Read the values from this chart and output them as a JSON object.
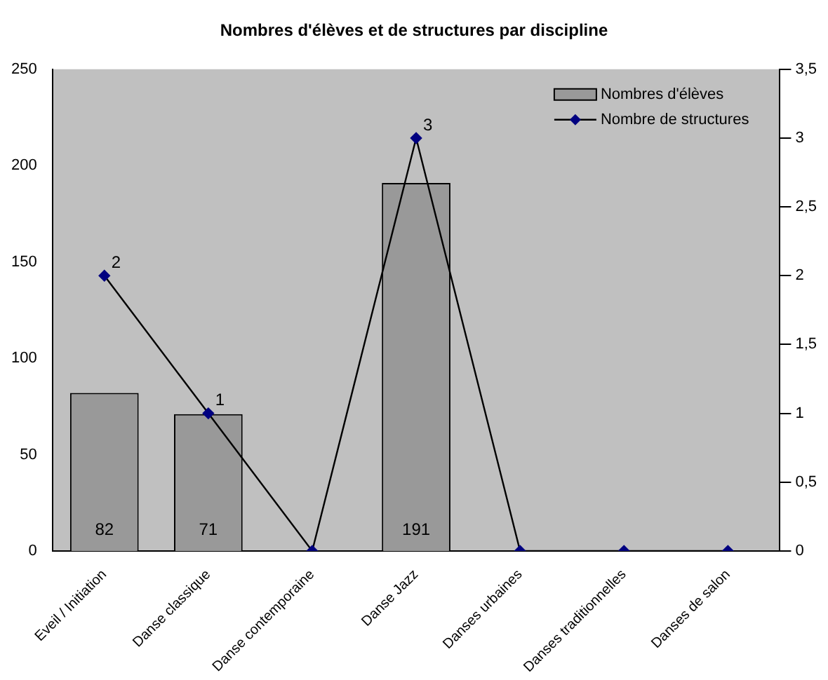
{
  "chart_data": {
    "type": "bar",
    "title": "Nombres d'élèves et de structures par discipline",
    "categories": [
      "Eveil / Initiation",
      "Danse classique",
      "Danse contemporaine",
      "Danse Jazz",
      "Danses urbaines",
      "Danses traditionnelles",
      "Danses de salon"
    ],
    "series": [
      {
        "name": "Nombres d'élèves",
        "color": "#999999",
        "values": [
          82,
          71,
          0,
          191,
          0,
          0,
          0
        ],
        "value_labels": [
          "82",
          "71",
          null,
          "191",
          null,
          null,
          null
        ]
      },
      {
        "name": "Nombre de structures",
        "type": "line",
        "axis": "y2",
        "color": "#000000",
        "marker": "diamond",
        "values": [
          2,
          1,
          0,
          3,
          0,
          0,
          0
        ],
        "value_labels": [
          "2",
          "1",
          null,
          "3",
          null,
          null,
          null
        ]
      }
    ],
    "ylim": [
      0,
      250
    ],
    "yticks": [
      0,
      50,
      100,
      150,
      200,
      250
    ],
    "y2lim": [
      0,
      3.5
    ],
    "y2ticks": [
      0,
      {
        "value": 0.5,
        "label": "0,5"
      },
      1,
      {
        "value": 1.5,
        "label": "1,5"
      },
      2,
      {
        "value": 2.5,
        "label": "2,5"
      },
      3,
      {
        "value": 3.5,
        "label": "3,5"
      }
    ],
    "grid": false,
    "legend": "top right"
  }
}
